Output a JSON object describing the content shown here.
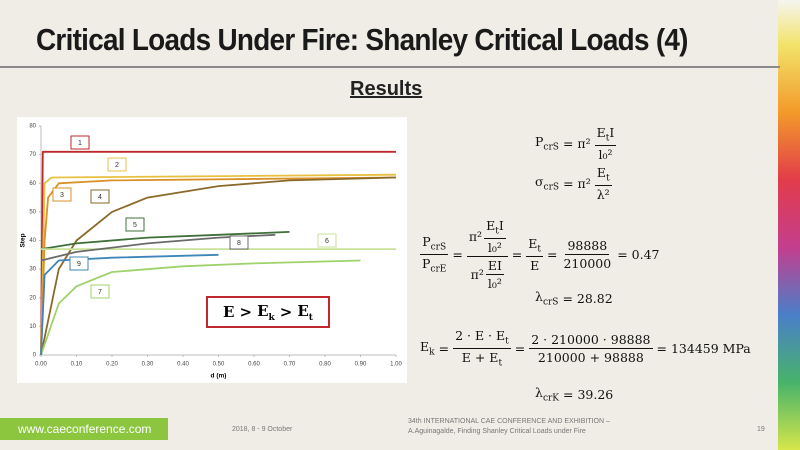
{
  "slide": {
    "title": "Critical Loads Under Fire: Shanley Critical Loads (4)",
    "subtitle": "Results",
    "condition": {
      "a": "E",
      "op1": ">",
      "b": "E",
      "b_sub": "k",
      "op2": ">",
      "c": "E",
      "c_sub": "t"
    },
    "formulas": {
      "f1": {
        "lhs": "P",
        "lhs_sub": "crS",
        "mid": "= π²",
        "num": "E",
        "num_sub": "t",
        "num_tail": "I",
        "den": "l₀²"
      },
      "f2": {
        "lhs": "σ",
        "lhs_sub": "crS",
        "mid": "= π²",
        "num": "E",
        "num_sub": "t",
        "den": "λ²"
      },
      "f3": {
        "n": "P",
        "n_sub": "crS",
        "d": "P",
        "d_sub": "crE",
        "eq1": "=",
        "a_pre": "π²",
        "a_num": "E",
        "a_num_sub": "t",
        "a_num_tail": "I",
        "a_den": "l₀²",
        "b_pre": "π²",
        "b_num": "EI",
        "b_den": "l₀²",
        "eq2": "=",
        "c_num": "E",
        "c_num_sub": "t",
        "c_den": "E",
        "eq3": "=",
        "d_num": "98888",
        "d_den": "210000",
        "result": "= 0.47"
      },
      "f4": {
        "lhs": "λ",
        "lhs_sub": "crS",
        "rhs": "= 28.82"
      },
      "f5": {
        "lhs": "E",
        "lhs_sub": "k",
        "eq1": "=",
        "a_num": "2 · E · E",
        "a_num_sub": "t",
        "a_den": "E + E",
        "a_den_sub": "t",
        "eq2": "=",
        "b_num": "2 · 210000 · 98888",
        "b_den": "210000 + 98888",
        "result": "= 134459 MPa"
      },
      "f6": {
        "lhs": "λ",
        "lhs_sub": "crK",
        "rhs": "= 39.26"
      }
    },
    "footer": {
      "website": "www.caeconference.com",
      "date": "2018, 8 -  9 October",
      "event": "34th INTERNATIONAL CAE CONFERENCE AND EXHIBITION –",
      "paper": "A.Aguinagalde, Finding Shanley Critical Loads under Fire",
      "page": "19"
    }
  },
  "chart_data": {
    "type": "line",
    "x_label": "d (m)",
    "y_label": "Step",
    "xlim": [
      0,
      1
    ],
    "ylim": [
      0,
      80
    ],
    "xticks": [
      {
        "value": 0,
        "label": "0.00"
      },
      {
        "value": 0.1,
        "label": "0.10"
      },
      {
        "value": 0.2,
        "label": "0.20"
      },
      {
        "value": 0.3,
        "label": "0.30"
      },
      {
        "value": 0.4,
        "label": "0.40"
      },
      {
        "value": 0.5,
        "label": "0.50"
      },
      {
        "value": 0.6,
        "label": "0.60"
      },
      {
        "value": 0.7,
        "label": "0.70"
      },
      {
        "value": 0.8,
        "label": "0.80"
      },
      {
        "value": 0.9,
        "label": "0.90"
      },
      {
        "value": 1,
        "label": "1.00"
      }
    ],
    "yticks": [
      0,
      10,
      20,
      30,
      40,
      50,
      60,
      70,
      80
    ],
    "series": [
      {
        "name": "1",
        "color": "#c0282d",
        "x": [
          0,
          0.005,
          1
        ],
        "values": [
          0,
          71,
          71
        ]
      },
      {
        "name": "2",
        "color": "#e8c040",
        "x": [
          0,
          0.01,
          0.03,
          1
        ],
        "values": [
          0,
          60,
          62,
          63
        ]
      },
      {
        "name": "3",
        "color": "#d9922a",
        "x": [
          0,
          0.01,
          0.02,
          0.05,
          0.2,
          1
        ],
        "values": [
          0,
          40,
          55,
          60,
          61,
          62
        ]
      },
      {
        "name": "4",
        "color": "#8a6a2a",
        "x": [
          0,
          0.05,
          0.1,
          0.2,
          0.3,
          0.5,
          0.7,
          1
        ],
        "values": [
          0,
          30,
          40,
          50,
          55,
          59,
          61,
          62
        ]
      },
      {
        "name": "5",
        "color": "#3f6f3a",
        "x": [
          0,
          0.1,
          0.3,
          0.5,
          0.7
        ],
        "values": [
          37,
          39,
          41,
          42,
          43
        ]
      },
      {
        "name": "6",
        "color": "#c9e29a",
        "x": [
          0,
          1
        ],
        "values": [
          37,
          37
        ]
      },
      {
        "name": "7",
        "color": "#9fd26a",
        "x": [
          0,
          0.05,
          0.1,
          0.2,
          0.4,
          0.6,
          0.9
        ],
        "values": [
          0,
          18,
          24,
          29,
          31,
          32,
          33
        ]
      },
      {
        "name": "8",
        "color": "#6b6b6b",
        "x": [
          0,
          0.1,
          0.3,
          0.5,
          0.66
        ],
        "values": [
          33,
          36,
          39,
          41,
          42
        ]
      },
      {
        "name": "9",
        "color": "#3f86b8",
        "x": [
          0,
          0.01,
          0.05,
          0.2,
          0.5
        ],
        "values": [
          0,
          28,
          33,
          34,
          35
        ]
      }
    ]
  }
}
